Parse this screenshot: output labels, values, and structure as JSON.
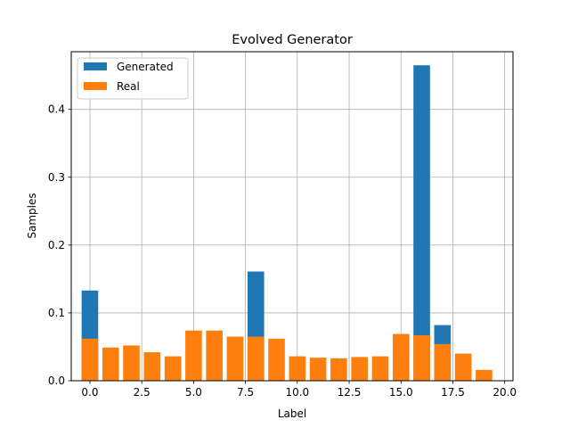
{
  "chart_data": {
    "type": "bar",
    "title": "Evolved Generator",
    "xlabel": "Label",
    "ylabel": "Samples",
    "xlim": [
      -0.9,
      20.4
    ],
    "ylim": [
      0,
      0.485
    ],
    "x_ticks": [
      0.0,
      2.5,
      5.0,
      7.5,
      10.0,
      12.5,
      15.0,
      17.5,
      20.0
    ],
    "x_tick_labels": [
      "0.0",
      "2.5",
      "5.0",
      "7.5",
      "10.0",
      "12.5",
      "15.0",
      "17.5",
      "20.0"
    ],
    "y_ticks": [
      0.0,
      0.1,
      0.2,
      0.3,
      0.4
    ],
    "y_tick_labels": [
      "0.0",
      "0.1",
      "0.2",
      "0.3",
      "0.4"
    ],
    "grid": true,
    "legend_position": "top-left",
    "bar_width": 0.8,
    "x": [
      0,
      1,
      2,
      3,
      4,
      5,
      6,
      7,
      8,
      9,
      10,
      11,
      12,
      13,
      14,
      15,
      16,
      17,
      18,
      19
    ],
    "series": [
      {
        "name": "Generated",
        "color": "#1f77b4",
        "values": [
          0.133,
          0,
          0,
          0,
          0,
          0,
          0,
          0,
          0.161,
          0,
          0,
          0,
          0,
          0,
          0,
          0,
          0.465,
          0.082,
          0,
          0
        ]
      },
      {
        "name": "Real",
        "color": "#ff7f0e",
        "values": [
          0.062,
          0.049,
          0.052,
          0.042,
          0.036,
          0.074,
          0.074,
          0.065,
          0.065,
          0.062,
          0.036,
          0.034,
          0.033,
          0.035,
          0.036,
          0.069,
          0.067,
          0.054,
          0.04,
          0.016
        ]
      }
    ]
  }
}
